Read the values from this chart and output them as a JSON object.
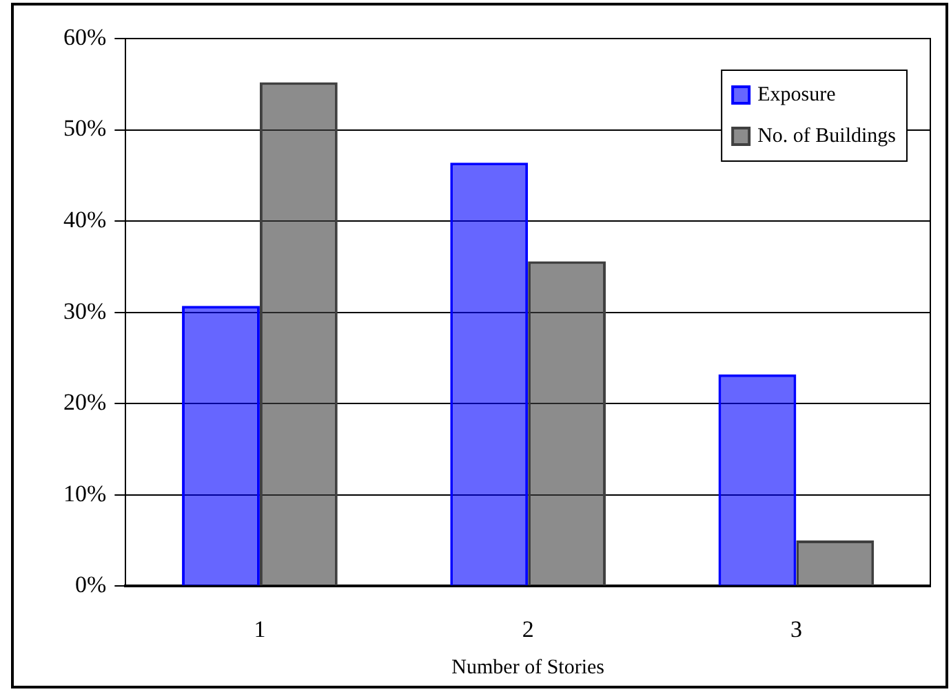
{
  "chart_data": {
    "type": "bar",
    "xlabel": "Number of Stories",
    "categories": [
      "1",
      "2",
      "3"
    ],
    "series": [
      {
        "name": "Exposure",
        "color": "#0000ff",
        "values": [
          30.7,
          46.4,
          23.2
        ]
      },
      {
        "name": "No. of Buildings",
        "color": "#404040",
        "values": [
          55.2,
          35.6,
          5.0
        ]
      }
    ],
    "ylim": [
      0,
      60
    ],
    "yticks": [
      {
        "value": 0,
        "label": "0%"
      },
      {
        "value": 10,
        "label": "10%"
      },
      {
        "value": 20,
        "label": "20%"
      },
      {
        "value": 30,
        "label": "30%"
      },
      {
        "value": 40,
        "label": "40%"
      },
      {
        "value": 50,
        "label": "50%"
      },
      {
        "value": 60,
        "label": "60%"
      }
    ],
    "grid": "y",
    "legend": "top right"
  }
}
